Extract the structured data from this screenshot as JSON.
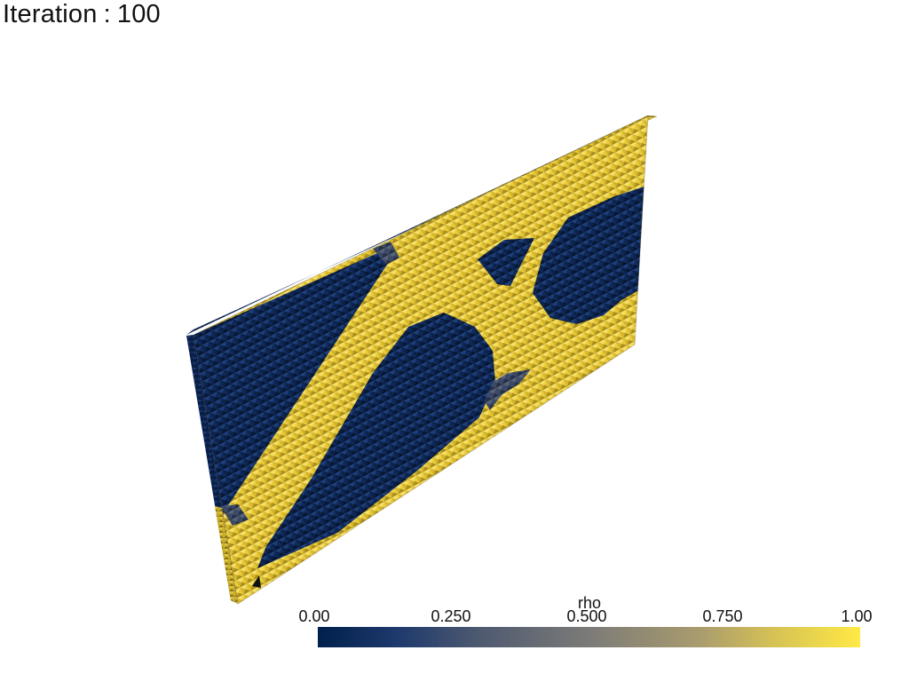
{
  "title": {
    "label": "Iteration",
    "separator": ":",
    "value": "100"
  },
  "colorbar": {
    "title": "rho",
    "ticks": [
      "0.00",
      "0.250",
      "0.500",
      "0.750",
      "1.00"
    ],
    "range": [
      0.0,
      1.0
    ],
    "colormap": "cividis",
    "colors": {
      "low": "#00204c",
      "mid": "#7c7b78",
      "high": "#ffe945"
    }
  },
  "scene": {
    "field": "rho",
    "object": "voxel-plate",
    "solid_color": "#e8c93a",
    "void_color": "#0f2a5c"
  }
}
